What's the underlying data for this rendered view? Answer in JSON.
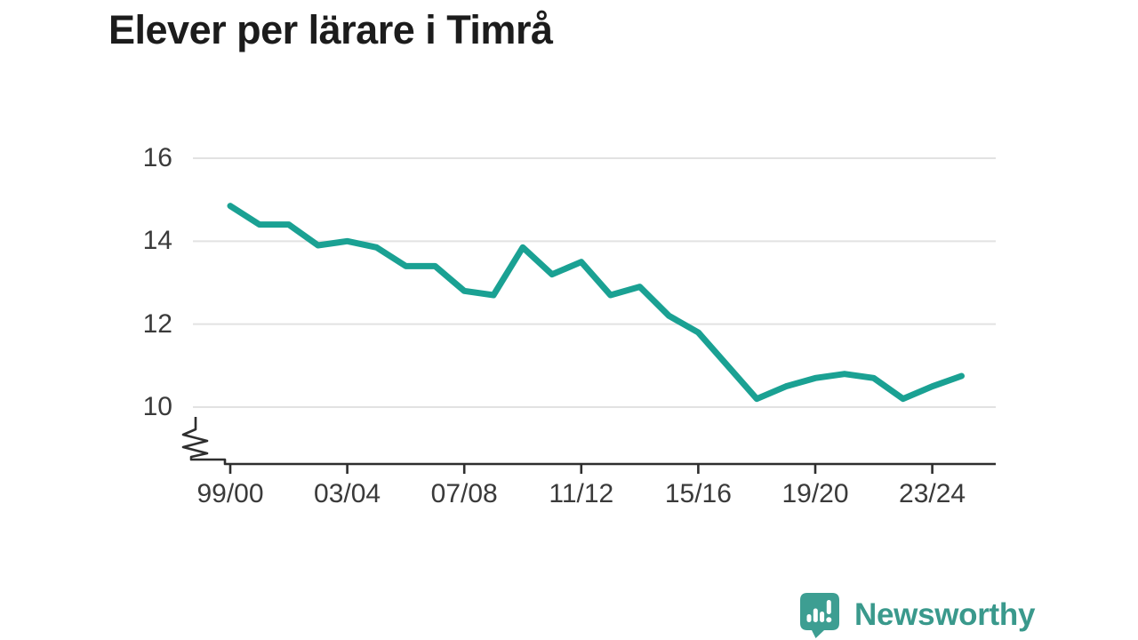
{
  "title": "Elever per lärare i Timrå",
  "footer": {
    "brand": "Newsworthy"
  },
  "colors": {
    "line": "#1aa193",
    "grid": "#e2e2e2",
    "axis": "#2e2e2e",
    "title_text": "#1c1c1c",
    "tick_label": "#3a3a3a",
    "brand_teal": "#3d9e92",
    "brand_text": "#3a998c",
    "background": "#ffffff"
  },
  "chart_data": {
    "type": "line",
    "title": "Elever per lärare i Timrå",
    "x": [
      "99/00",
      "00/01",
      "01/02",
      "02/03",
      "03/04",
      "04/05",
      "05/06",
      "06/07",
      "07/08",
      "08/09",
      "09/10",
      "10/11",
      "11/12",
      "12/13",
      "13/14",
      "14/15",
      "15/16",
      "16/17",
      "17/18",
      "18/19",
      "19/20",
      "20/21",
      "21/22",
      "22/23",
      "23/24",
      "24/25"
    ],
    "values": [
      14.85,
      14.4,
      14.4,
      13.9,
      14.0,
      13.85,
      13.4,
      13.4,
      12.8,
      12.7,
      13.85,
      13.2,
      13.5,
      12.7,
      12.9,
      12.2,
      11.8,
      11.0,
      10.2,
      10.5,
      10.7,
      10.8,
      10.7,
      10.2,
      10.5,
      10.75
    ],
    "yticks": [
      16,
      14,
      12,
      10
    ],
    "xticks": [
      "99/00",
      "03/04",
      "07/08",
      "11/12",
      "15/16",
      "19/20",
      "23/24"
    ],
    "xtick_every": 4,
    "ylim": [
      10,
      16
    ],
    "axis_break": true,
    "grid": "horizontal",
    "legend": "none",
    "xlabel": "",
    "ylabel": ""
  }
}
